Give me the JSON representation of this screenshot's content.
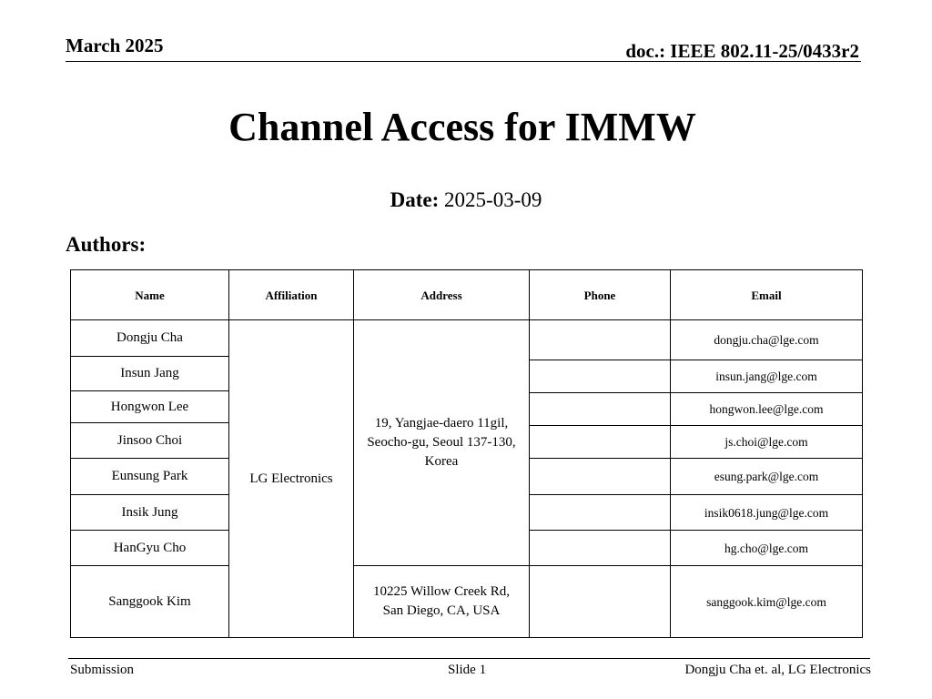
{
  "header": {
    "date": "March 2025",
    "doc": "doc.: IEEE 802.11-25/0433r2"
  },
  "title": "Channel Access for IMMW",
  "date": {
    "label": "Date:",
    "value": "2025-03-09"
  },
  "authors_label": "Authors:",
  "table": {
    "columns": [
      "Name",
      "Affiliation",
      "Address",
      "Phone",
      "Email"
    ],
    "names": [
      "Dongju Cha",
      "Insun Jang",
      "Hongwon Lee",
      "Jinsoo Choi",
      "Eunsung Park",
      "Insik Jung",
      "HanGyu Cho",
      "Sanggook Kim"
    ],
    "affiliation": "LG Electronics",
    "address_seoul": "19, Yangjae-daero 11gil, Seocho-gu, Seoul 137-130, Korea",
    "address_sandiego": "10225 Willow Creek Rd, San Diego, CA, USA",
    "emails": [
      "dongju.cha@lge.com",
      "insun.jang@lge.com",
      "hongwon.lee@lge.com",
      "js.choi@lge.com",
      "esung.park@lge.com",
      "insik0618.jung@lge.com",
      "hg.cho@lge.com",
      "sanggook.kim@lge.com"
    ]
  },
  "footer": {
    "left": "Submission",
    "center": "Slide 1",
    "right": "Dongju Cha et. al, LG Electronics"
  }
}
